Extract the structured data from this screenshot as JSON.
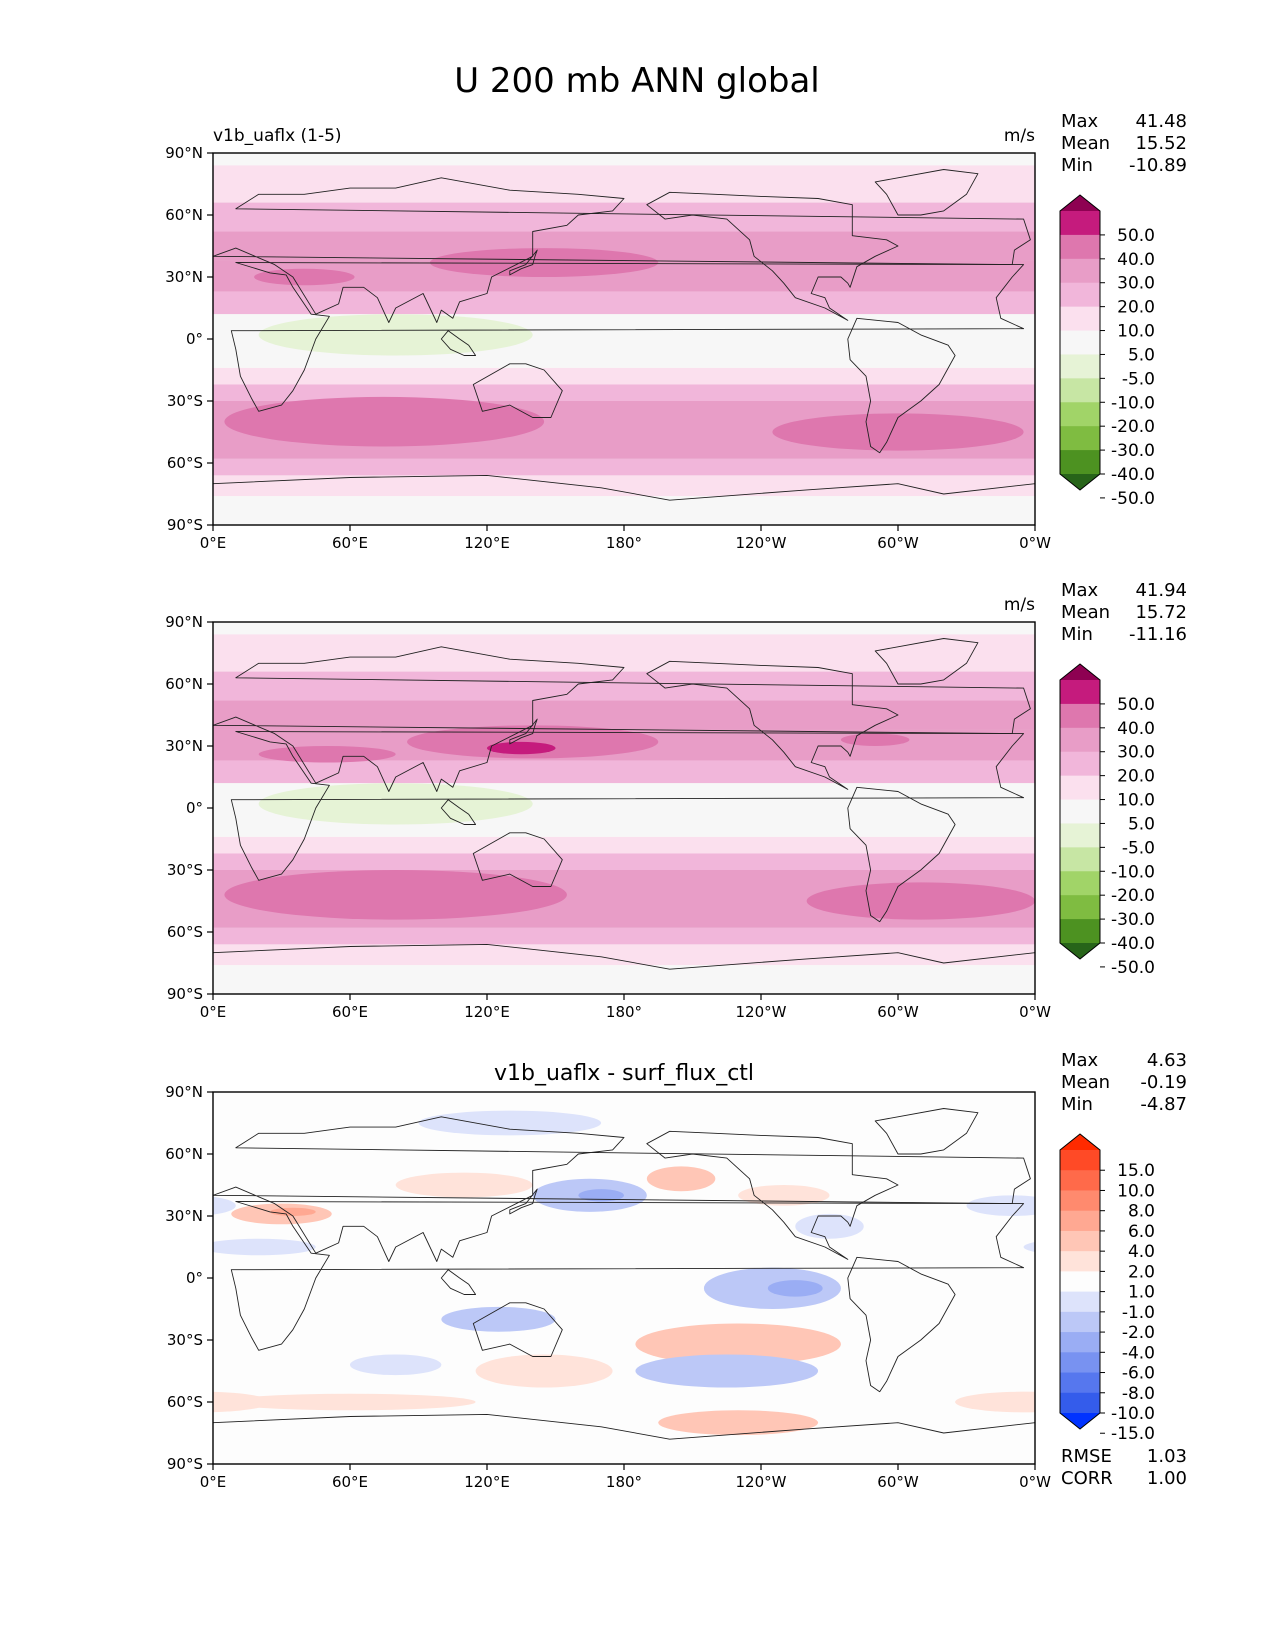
{
  "figure": {
    "title": "U 200 mb ANN global"
  },
  "axes_common": {
    "lon_ticks": [
      "0°E",
      "60°E",
      "120°E",
      "180°",
      "120°W",
      "60°W",
      "0°W"
    ],
    "lat_ticks": [
      "90°N",
      "60°N",
      "30°N",
      "0°",
      "30°S",
      "60°S",
      "90°S"
    ]
  },
  "panels": [
    {
      "title_left": "v1b_uaflx (1-5)",
      "title_center": "",
      "units": "m/s",
      "stats": [
        {
          "label": "Max",
          "value": "41.48"
        },
        {
          "label": "Mean",
          "value": "15.52"
        },
        {
          "label": "Min",
          "value": "-10.89"
        }
      ],
      "colorbar": {
        "ticks": [
          "50.0",
          "40.0",
          "30.0",
          "20.0",
          "10.0",
          "5.0",
          "-5.0",
          "-10.0",
          "-20.0",
          "-30.0",
          "-40.0",
          "-50.0"
        ],
        "colors": [
          "#8e0152",
          "#c51b7d",
          "#de77ae",
          "#e89dc7",
          "#f1b6da",
          "#fbe0ee",
          "#f7f7f7",
          "#e6f3d6",
          "#c7e6a4",
          "#a1d468",
          "#7fbc41",
          "#4d9221",
          "#276419"
        ]
      },
      "summary": []
    },
    {
      "title_left": "",
      "title_center": "",
      "units": "m/s",
      "stats": [
        {
          "label": "Max",
          "value": "41.94"
        },
        {
          "label": "Mean",
          "value": "15.72"
        },
        {
          "label": "Min",
          "value": "-11.16"
        }
      ],
      "colorbar": {
        "ticks": [
          "50.0",
          "40.0",
          "30.0",
          "20.0",
          "10.0",
          "5.0",
          "-5.0",
          "-10.0",
          "-20.0",
          "-30.0",
          "-40.0",
          "-50.0"
        ],
        "colors": [
          "#8e0152",
          "#c51b7d",
          "#de77ae",
          "#e89dc7",
          "#f1b6da",
          "#fbe0ee",
          "#f7f7f7",
          "#e6f3d6",
          "#c7e6a4",
          "#a1d468",
          "#7fbc41",
          "#4d9221",
          "#276419"
        ]
      },
      "summary": []
    },
    {
      "title_left": "",
      "title_center": "v1b_uaflx - surf_flux_ctl",
      "units": "",
      "stats": [
        {
          "label": "Max",
          "value": "4.63"
        },
        {
          "label": "Mean",
          "value": "-0.19"
        },
        {
          "label": "Min",
          "value": "-4.87"
        }
      ],
      "colorbar": {
        "ticks": [
          "15.0",
          "10.0",
          "8.0",
          "6.0",
          "4.0",
          "2.0",
          "1.0",
          "-1.0",
          "-2.0",
          "-4.0",
          "-6.0",
          "-8.0",
          "-10.0",
          "-15.0"
        ],
        "colors": [
          "#ff2a00",
          "#ff4a26",
          "#ff6a4a",
          "#ff8a6e",
          "#ffa892",
          "#ffc6b6",
          "#ffe3da",
          "#fdfdfd",
          "#dde3fb",
          "#bcc8f7",
          "#9aadf4",
          "#7892f1",
          "#5677ee",
          "#345ceb",
          "#0033ff"
        ]
      },
      "summary": [
        {
          "label": "RMSE",
          "value": "1.03"
        },
        {
          "label": "CORR",
          "value": "1.00"
        }
      ]
    }
  ],
  "chart_data": [
    {
      "type": "heatmap",
      "title": "v1b_uaflx (1-5)",
      "units": "m/s",
      "x_range": [
        0,
        360
      ],
      "y_range": [
        -90,
        90
      ],
      "features": [
        {
          "kind": "band",
          "lat": [
            90,
            -90
          ],
          "value": 0
        },
        {
          "kind": "band",
          "lat": [
            84,
            66
          ],
          "value": 7
        },
        {
          "kind": "band",
          "lat": [
            66,
            52
          ],
          "value": 15
        },
        {
          "kind": "band",
          "lat": [
            52,
            38
          ],
          "value": 22
        },
        {
          "kind": "band",
          "lat": [
            38,
            23
          ],
          "value": 25
        },
        {
          "kind": "band",
          "lat": [
            23,
            12
          ],
          "value": 12
        },
        {
          "kind": "band",
          "lat": [
            12,
            -2
          ],
          "value": 2
        },
        {
          "kind": "band",
          "lat": [
            -2,
            -14
          ],
          "value": 2
        },
        {
          "kind": "band",
          "lat": [
            -14,
            -22
          ],
          "value": 8
        },
        {
          "kind": "band",
          "lat": [
            -22,
            -30
          ],
          "value": 16
        },
        {
          "kind": "band",
          "lat": [
            -30,
            -58
          ],
          "value": 24
        },
        {
          "kind": "band",
          "lat": [
            -58,
            -66
          ],
          "value": 17
        },
        {
          "kind": "band",
          "lat": [
            -66,
            -76
          ],
          "value": 8
        },
        {
          "kind": "blob",
          "lon": 145,
          "lat": 37,
          "rlon": 50,
          "rlat": 7,
          "value": 35
        },
        {
          "kind": "blob",
          "lon": 40,
          "lat": 30,
          "rlon": 22,
          "rlat": 4,
          "value": 32
        },
        {
          "kind": "blob",
          "lon": 75,
          "lat": -40,
          "rlon": 70,
          "rlat": 12,
          "value": 32
        },
        {
          "kind": "blob",
          "lon": 300,
          "lat": -45,
          "rlon": 55,
          "rlat": 9,
          "value": 32
        },
        {
          "kind": "blob",
          "lon": 80,
          "lat": 2,
          "rlon": 60,
          "rlat": 10,
          "value": -7
        },
        {
          "kind": "blob",
          "lon": 85,
          "lat": 2,
          "rlon": 15,
          "rlat": 3,
          "value": -10
        }
      ]
    },
    {
      "type": "heatmap",
      "title": "",
      "units": "m/s",
      "x_range": [
        0,
        360
      ],
      "y_range": [
        -90,
        90
      ],
      "features": [
        {
          "kind": "band",
          "lat": [
            90,
            -90
          ],
          "value": 0
        },
        {
          "kind": "band",
          "lat": [
            84,
            66
          ],
          "value": 7
        },
        {
          "kind": "band",
          "lat": [
            66,
            52
          ],
          "value": 15
        },
        {
          "kind": "band",
          "lat": [
            52,
            38
          ],
          "value": 22
        },
        {
          "kind": "band",
          "lat": [
            38,
            23
          ],
          "value": 25
        },
        {
          "kind": "band",
          "lat": [
            23,
            12
          ],
          "value": 12
        },
        {
          "kind": "band",
          "lat": [
            12,
            -2
          ],
          "value": 2
        },
        {
          "kind": "band",
          "lat": [
            -2,
            -14
          ],
          "value": 2
        },
        {
          "kind": "band",
          "lat": [
            -14,
            -22
          ],
          "value": 8
        },
        {
          "kind": "band",
          "lat": [
            -22,
            -30
          ],
          "value": 16
        },
        {
          "kind": "band",
          "lat": [
            -30,
            -58
          ],
          "value": 24
        },
        {
          "kind": "band",
          "lat": [
            -58,
            -66
          ],
          "value": 17
        },
        {
          "kind": "band",
          "lat": [
            -66,
            -76
          ],
          "value": 8
        },
        {
          "kind": "blob",
          "lon": 140,
          "lat": 32,
          "rlon": 55,
          "rlat": 8,
          "value": 35
        },
        {
          "kind": "blob",
          "lon": 135,
          "lat": 29,
          "rlon": 15,
          "rlat": 3,
          "value": 42
        },
        {
          "kind": "blob",
          "lon": 50,
          "lat": 26,
          "rlon": 30,
          "rlat": 4,
          "value": 32
        },
        {
          "kind": "blob",
          "lon": 290,
          "lat": 33,
          "rlon": 15,
          "rlat": 3,
          "value": 35
        },
        {
          "kind": "blob",
          "lon": 80,
          "lat": -42,
          "rlon": 75,
          "rlat": 12,
          "value": 32
        },
        {
          "kind": "blob",
          "lon": 310,
          "lat": -45,
          "rlon": 50,
          "rlat": 9,
          "value": 32
        },
        {
          "kind": "blob",
          "lon": 80,
          "lat": 2,
          "rlon": 60,
          "rlat": 10,
          "value": -7
        },
        {
          "kind": "blob",
          "lon": 85,
          "lat": 2,
          "rlon": 15,
          "rlat": 3,
          "value": -10
        }
      ]
    },
    {
      "type": "heatmap",
      "title": "v1b_uaflx - surf_flux_ctl",
      "units": "",
      "x_range": [
        0,
        360
      ],
      "y_range": [
        -90,
        90
      ],
      "features": [
        {
          "kind": "band",
          "lat": [
            90,
            -90
          ],
          "value": 0
        },
        {
          "kind": "blob",
          "lon": 30,
          "lat": 31,
          "rlon": 22,
          "rlat": 5,
          "value": 2.5
        },
        {
          "kind": "blob",
          "lon": 35,
          "lat": 32,
          "rlon": 10,
          "rlat": 2,
          "value": 4.5
        },
        {
          "kind": "blob",
          "lon": 110,
          "lat": 45,
          "rlon": 30,
          "rlat": 6,
          "value": 1.5
        },
        {
          "kind": "blob",
          "lon": 205,
          "lat": 48,
          "rlon": 15,
          "rlat": 6,
          "value": 2.5
        },
        {
          "kind": "blob",
          "lon": 250,
          "lat": 40,
          "rlon": 20,
          "rlat": 5,
          "value": 1.5
        },
        {
          "kind": "blob",
          "lon": 230,
          "lat": -32,
          "rlon": 45,
          "rlat": 10,
          "value": 2.5
        },
        {
          "kind": "blob",
          "lon": 145,
          "lat": -45,
          "rlon": 30,
          "rlat": 8,
          "value": 1.5
        },
        {
          "kind": "blob",
          "lon": 60,
          "lat": -60,
          "rlon": 55,
          "rlat": 4,
          "value": 1.5
        },
        {
          "kind": "blob",
          "lon": 230,
          "lat": -70,
          "rlon": 35,
          "rlat": 6,
          "value": 2.5
        },
        {
          "kind": "blob",
          "lon": 355,
          "lat": -60,
          "rlon": 30,
          "rlat": 5,
          "value": 1.5
        },
        {
          "kind": "blob",
          "lon": 165,
          "lat": 40,
          "rlon": 25,
          "rlat": 8,
          "value": -2.5
        },
        {
          "kind": "blob",
          "lon": 170,
          "lat": 40,
          "rlon": 10,
          "rlat": 3,
          "value": -4.5
        },
        {
          "kind": "blob",
          "lon": 130,
          "lat": 75,
          "rlon": 40,
          "rlat": 6,
          "value": -1.5
        },
        {
          "kind": "blob",
          "lon": 245,
          "lat": -5,
          "rlon": 30,
          "rlat": 10,
          "value": -2.5
        },
        {
          "kind": "blob",
          "lon": 255,
          "lat": -5,
          "rlon": 12,
          "rlat": 4,
          "value": -4.5
        },
        {
          "kind": "blob",
          "lon": 225,
          "lat": -45,
          "rlon": 40,
          "rlat": 8,
          "value": -2.5
        },
        {
          "kind": "blob",
          "lon": 125,
          "lat": -20,
          "rlon": 25,
          "rlat": 6,
          "value": -2.5
        },
        {
          "kind": "blob",
          "lon": 80,
          "lat": -42,
          "rlon": 20,
          "rlat": 5,
          "value": -1.5
        },
        {
          "kind": "blob",
          "lon": 20,
          "lat": 15,
          "rlon": 25,
          "rlat": 4,
          "value": -1.5
        },
        {
          "kind": "blob",
          "lon": 270,
          "lat": 25,
          "rlon": 15,
          "rlat": 6,
          "value": -1.5
        },
        {
          "kind": "blob",
          "lon": 350,
          "lat": 35,
          "rlon": 20,
          "rlat": 5,
          "value": -1.5
        }
      ]
    }
  ]
}
